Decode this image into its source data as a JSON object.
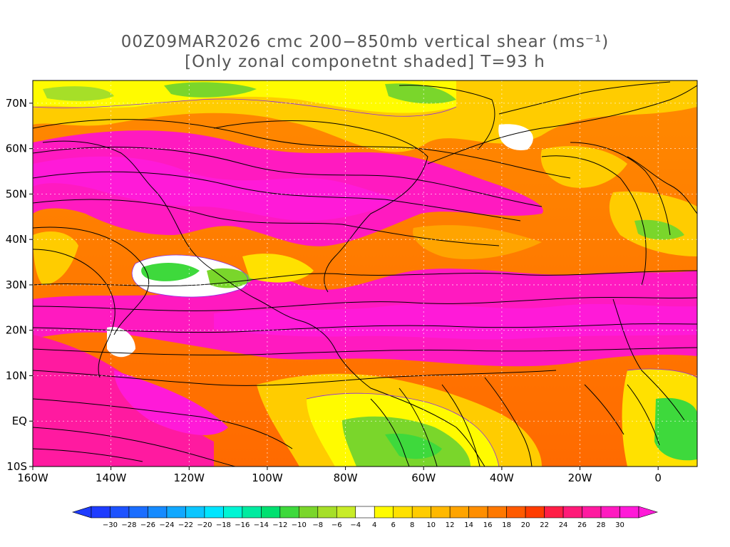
{
  "title": {
    "line1": "00Z09MAR2026 cmc 200−850mb vertical shear (ms⁻¹)",
    "line2": "[Only zonal componetnt shaded] T=93 h"
  },
  "map": {
    "lon_range": [
      -160,
      10
    ],
    "lat_range": [
      -10,
      75
    ],
    "lon_ticks": [
      {
        "lon": -160,
        "label": "160W"
      },
      {
        "lon": -140,
        "label": "140W"
      },
      {
        "lon": -120,
        "label": "120W"
      },
      {
        "lon": -100,
        "label": "100W"
      },
      {
        "lon": -80,
        "label": "80W"
      },
      {
        "lon": -60,
        "label": "60W"
      },
      {
        "lon": -40,
        "label": "40W"
      },
      {
        "lon": -20,
        "label": "20W"
      },
      {
        "lon": 0,
        "label": "0"
      }
    ],
    "lat_ticks": [
      {
        "lat": 70,
        "label": "70N"
      },
      {
        "lat": 60,
        "label": "60N"
      },
      {
        "lat": 50,
        "label": "50N"
      },
      {
        "lat": 40,
        "label": "40N"
      },
      {
        "lat": 30,
        "label": "30N"
      },
      {
        "lat": 20,
        "label": "20N"
      },
      {
        "lat": 10,
        "label": "10N"
      },
      {
        "lat": 0,
        "label": "EQ"
      },
      {
        "lat": -10,
        "label": "10S"
      }
    ],
    "grid": true
  },
  "colorbar": {
    "labels": [
      "-30",
      "-28",
      "-26",
      "-24",
      "-22",
      "-20",
      "-18",
      "-16",
      "-14",
      "-12",
      "-10",
      "-8",
      "-6",
      "-4",
      "4",
      "6",
      "8",
      "10",
      "12",
      "14",
      "16",
      "18",
      "20",
      "22",
      "24",
      "26",
      "28",
      "30"
    ],
    "colors": [
      "#1e3cff",
      "#1d52ff",
      "#1a6dff",
      "#168bff",
      "#11a8ff",
      "#0cc6ff",
      "#00e5ff",
      "#00f5d4",
      "#00eba0",
      "#00e070",
      "#3ed93c",
      "#7ad62b",
      "#a6df28",
      "#c8ec28",
      "#ffffff",
      "#fffb00",
      "#ffe100",
      "#ffcc00",
      "#ffb800",
      "#ffa400",
      "#ff8e00",
      "#ff7800",
      "#ff5a00",
      "#ff3c00",
      "#ff1e46",
      "#ff1a78",
      "#ff1aa0",
      "#ff1ac0",
      "#ff1ad8"
    ]
  }
}
